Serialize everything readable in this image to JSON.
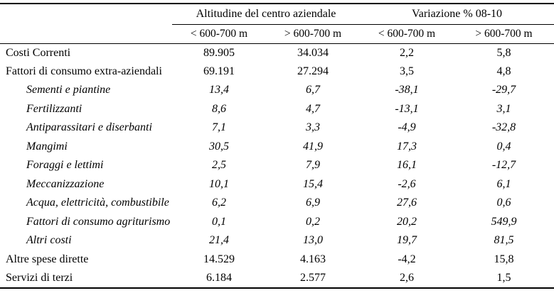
{
  "colors": {
    "text": "#000000",
    "background": "#ffffff",
    "rule": "#000000"
  },
  "table": {
    "column_groups": [
      {
        "label": "Altitudine del centro aziendale"
      },
      {
        "label": "Variazione % 08-10"
      }
    ],
    "sub_headers": [
      "< 600-700 m",
      "> 600-700 m",
      "< 600-700 m",
      "> 600-700 m"
    ],
    "rows": [
      {
        "label": "Costi Correnti",
        "style": "main",
        "values": [
          "89.905",
          "34.034",
          "2,2",
          "5,8"
        ]
      },
      {
        "label": "Fattori di consumo extra-aziendali",
        "style": "main",
        "values": [
          "69.191",
          "27.294",
          "3,5",
          "4,8"
        ]
      },
      {
        "label": "Sementi e piantine",
        "style": "sub",
        "values": [
          "13,4",
          "6,7",
          "-38,1",
          "-29,7"
        ]
      },
      {
        "label": "Fertilizzanti",
        "style": "sub",
        "values": [
          "8,6",
          "4,7",
          "-13,1",
          "3,1"
        ]
      },
      {
        "label": "Antiparassitari e diserbanti",
        "style": "sub",
        "values": [
          "7,1",
          "3,3",
          "-4,9",
          "-32,8"
        ]
      },
      {
        "label": "Mangimi",
        "style": "sub",
        "values": [
          "30,5",
          "41,9",
          "17,3",
          "0,4"
        ]
      },
      {
        "label": "Foraggi e lettimi",
        "style": "sub",
        "values": [
          "2,5",
          "7,9",
          "16,1",
          "-12,7"
        ]
      },
      {
        "label": "Meccanizzazione",
        "style": "sub",
        "values": [
          "10,1",
          "15,4",
          "-2,6",
          "6,1"
        ]
      },
      {
        "label": "Acqua, elettricità, combustibile",
        "style": "sub",
        "values": [
          "6,2",
          "6,9",
          "27,6",
          "0,6"
        ]
      },
      {
        "label": "Fattori di consumo agriturismo",
        "style": "sub",
        "values": [
          "0,1",
          "0,2",
          "20,2",
          "549,9"
        ]
      },
      {
        "label": "Altri costi",
        "style": "sub",
        "values": [
          "21,4",
          "13,0",
          "19,7",
          "81,5"
        ]
      },
      {
        "label": "Altre spese dirette",
        "style": "main",
        "values": [
          "14.529",
          "4.163",
          "-4,2",
          "15,8"
        ]
      },
      {
        "label": "Servizi di terzi",
        "style": "main",
        "values": [
          "6.184",
          "2.577",
          "2,6",
          "1,5"
        ]
      }
    ]
  }
}
